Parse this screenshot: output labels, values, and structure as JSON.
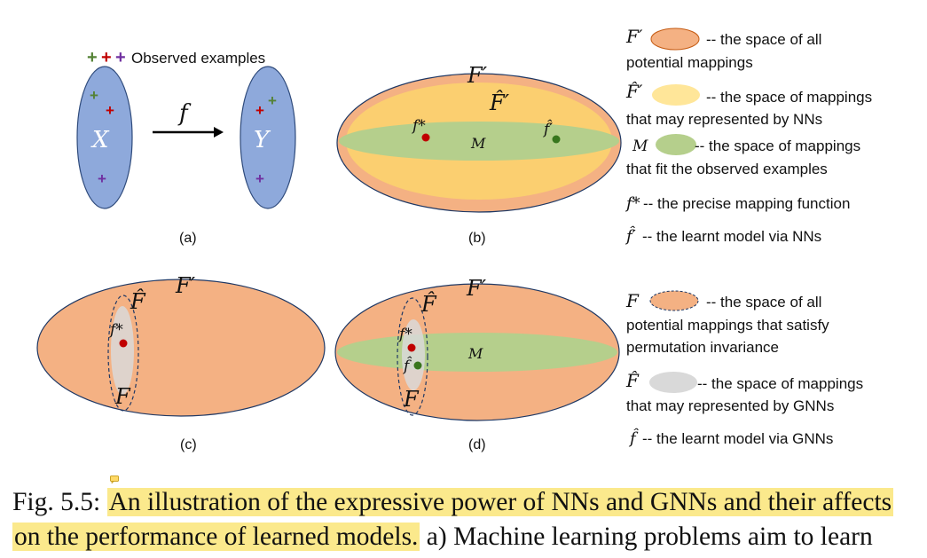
{
  "panels": {
    "a": {
      "label": "(a)",
      "legend_text": "Observed examples",
      "input_label": "X",
      "output_label": "Y",
      "map_label": "f"
    },
    "b": {
      "label": "(b)",
      "outer_label": "F′",
      "inner_label": "F̂′",
      "band_label": "M",
      "f_star": "f*",
      "f_hat": "f̂′"
    },
    "c": {
      "label": "(c)",
      "outer_label": "F′",
      "hat_label": "F̂",
      "f_star": "f*",
      "cal_label": "F"
    },
    "d": {
      "label": "(d)",
      "outer_label": "F′",
      "hat_label": "F̂",
      "band_label": "M",
      "f_star": "f*",
      "f_hat": "f̂",
      "cal_label": "F"
    }
  },
  "legend_top": [
    {
      "symbol": "F′",
      "line1": "-- the space of all",
      "line2": "potential mappings"
    },
    {
      "symbol": "F̂′",
      "line1": "-- the space of  mappings",
      "line2": "that may represented by NNs"
    },
    {
      "symbol": "M",
      "line1": "-- the space of  mappings",
      "line2": "that fit the observed examples"
    },
    {
      "symbol": "f*",
      "line1": "-- the precise mapping function"
    },
    {
      "symbol": "f̂′",
      "line1": "-- the learnt model via NNs"
    }
  ],
  "legend_bottom": [
    {
      "symbol": "F",
      "line1": "-- the space of all",
      "line2": "potential mappings that satisfy",
      "line3": "permutation invariance"
    },
    {
      "symbol": "F̂",
      "line1": "-- the space of  mappings",
      "line2": "that may represented by GNNs"
    },
    {
      "symbol": "f̂",
      "line1": "-- the learnt model via GNNs"
    }
  ],
  "caption": {
    "fig_label": "Fig. 5.5:",
    "highlight_1": "An illustration of the expressive power of NNs and GNNs and their affects",
    "highlight_2": "on the performance of learned models.",
    "rest": "a) Machine learning problems aim to learn"
  },
  "colors": {
    "set_blue": "#8ea9db",
    "outer_orange": "#f4b183",
    "nn_yellow": "#fbcf70",
    "band_green": "#b5cf8c",
    "gnn_gray": "#d9d9d9",
    "plus_green": "#548235",
    "plus_red": "#c00000",
    "plus_purple": "#7030a0",
    "highlight": "#fbe98c"
  }
}
